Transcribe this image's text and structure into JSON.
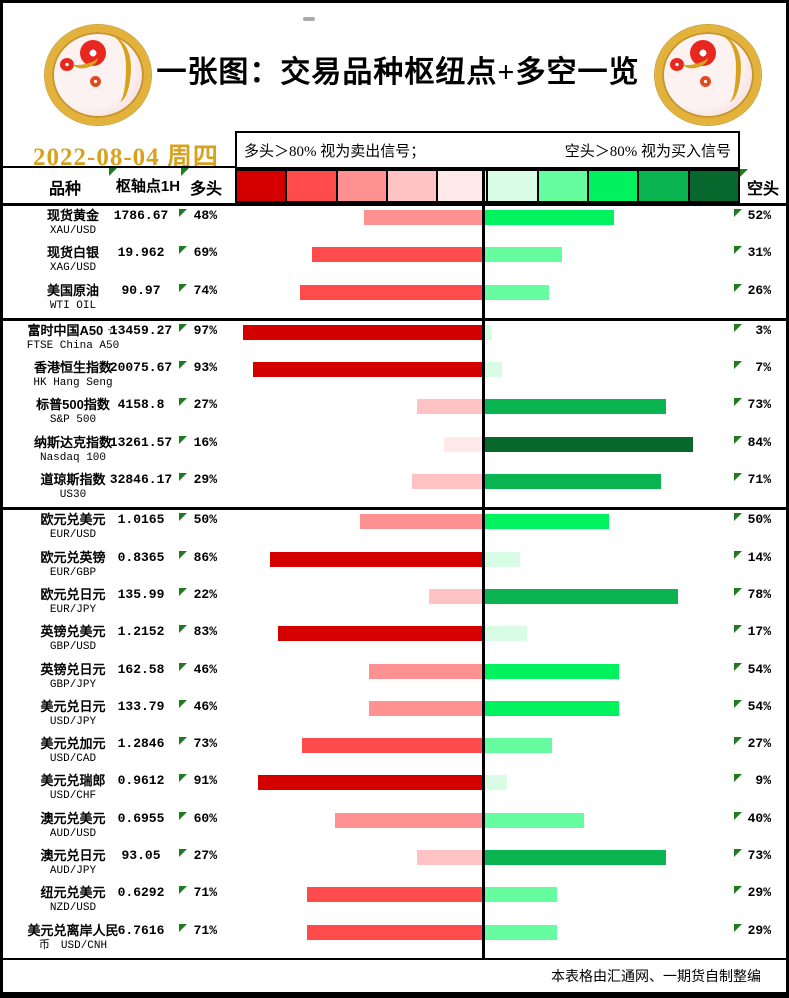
{
  "page": {
    "title": "一张图：交易品种枢纽点+多空一览",
    "date": "2022-08-04 周四",
    "footer": "本表格由汇通网、一期货自制整编"
  },
  "legend": {
    "long_signal": "多头＞80% 视为卖出信号；",
    "short_signal": "空头＞80% 视为买入信号"
  },
  "headers": {
    "instrument": "品种",
    "pivot": "枢轴点1H",
    "long": "多头",
    "short": "空头"
  },
  "colors": {
    "scale": [
      "#D40000",
      "#FF4B4B",
      "#FF9191",
      "#FFC3C3",
      "#FFE9E9",
      "#D9FCE5",
      "#66FDA1",
      "#00F25F",
      "#0AB551",
      "#07672D"
    ],
    "long_buckets_light_to_dark": [
      "#FFE9E9",
      "#FFC3C3",
      "#FF9191",
      "#FF4B4B",
      "#D40000"
    ],
    "short_buckets_light_to_dark": [
      "#D9FCE5",
      "#66FDA1",
      "#00F25F",
      "#0AB551",
      "#07672D"
    ],
    "date_gold": "#D9A21E",
    "marker_green": "#1E7B1E"
  },
  "chart_data": {
    "type": "bar",
    "orientation": "horizontal-diverging",
    "title": "一张图：交易品种枢纽点+多空一览",
    "date": "2022-08-04 周四",
    "legend_position": "top",
    "xlim_pct": [
      -100,
      100
    ],
    "series_names": [
      "多头",
      "空头"
    ],
    "group_breaks_after_row_index": [
      2,
      7
    ],
    "rows": [
      {
        "name_line1": "现货黄金",
        "name_line2": "XAU/USD",
        "name": "现货黄金",
        "code": "XAU/USD",
        "pivot": "1786.67",
        "long_pct": 48,
        "short_pct": 52
      },
      {
        "name_line1": "现货白银",
        "name_line2": "XAG/USD",
        "name": "现货白银",
        "code": "XAG/USD",
        "pivot": "19.962",
        "long_pct": 69,
        "short_pct": 31
      },
      {
        "name_line1": "美国原油",
        "name_line2": "WTI OIL",
        "name": "美国原油",
        "code": "WTI OIL",
        "pivot": "90.97",
        "long_pct": 74,
        "short_pct": 26
      },
      {
        "name_line1": "富时中国A50 ☆",
        "name_line2": "FTSE China A50",
        "name": "富时中国A50",
        "code": "FTSE China A50",
        "pivot": "13459.27",
        "long_pct": 97,
        "short_pct": 3
      },
      {
        "name_line1": "香港恒生指数",
        "name_line2": "HK Hang Seng",
        "name": "香港恒生指数",
        "code": "HK Hang Seng",
        "pivot": "20075.67",
        "long_pct": 93,
        "short_pct": 7
      },
      {
        "name_line1": "标普500指数",
        "name_line2": "S&P 500",
        "name": "标普500指数",
        "code": "S&P 500",
        "pivot": "4158.8",
        "long_pct": 27,
        "short_pct": 73
      },
      {
        "name_line1": "纳斯达克指数",
        "name_line2": "Nasdaq 100",
        "name": "纳斯达克指数",
        "code": "Nasdaq 100",
        "pivot": "13261.57",
        "long_pct": 16,
        "short_pct": 84
      },
      {
        "name_line1": "道琼斯指数",
        "name_line2": "US30",
        "name": "道琼斯指数",
        "code": "US30",
        "pivot": "32846.17",
        "long_pct": 29,
        "short_pct": 71
      },
      {
        "name_line1": "欧元兑美元",
        "name_line2": "EUR/USD",
        "name": "欧元兑美元",
        "code": "EUR/USD",
        "pivot": "1.0165",
        "long_pct": 50,
        "short_pct": 50
      },
      {
        "name_line1": "欧元兑英镑",
        "name_line2": "EUR/GBP",
        "name": "欧元兑英镑",
        "code": "EUR/GBP",
        "pivot": "0.8365",
        "long_pct": 86,
        "short_pct": 14
      },
      {
        "name_line1": "欧元兑日元",
        "name_line2": "EUR/JPY",
        "name": "欧元兑日元",
        "code": "EUR/JPY",
        "pivot": "135.99",
        "long_pct": 22,
        "short_pct": 78
      },
      {
        "name_line1": "英镑兑美元",
        "name_line2": "GBP/USD",
        "name": "英镑兑美元",
        "code": "GBP/USD",
        "pivot": "1.2152",
        "long_pct": 83,
        "short_pct": 17
      },
      {
        "name_line1": "英镑兑日元",
        "name_line2": "GBP/JPY",
        "name": "英镑兑日元",
        "code": "GBP/JPY",
        "pivot": "162.58",
        "long_pct": 46,
        "short_pct": 54
      },
      {
        "name_line1": "美元兑日元",
        "name_line2": "USD/JPY",
        "name": "美元兑日元",
        "code": "USD/JPY",
        "pivot": "133.79",
        "long_pct": 46,
        "short_pct": 54
      },
      {
        "name_line1": "美元兑加元",
        "name_line2": "USD/CAD",
        "name": "美元兑加元",
        "code": "USD/CAD",
        "pivot": "1.2846",
        "long_pct": 73,
        "short_pct": 27
      },
      {
        "name_line1": "美元兑瑞郎",
        "name_line2": "USD/CHF",
        "name": "美元兑瑞郎",
        "code": "USD/CHF",
        "pivot": "0.9612",
        "long_pct": 91,
        "short_pct": 9
      },
      {
        "name_line1": "澳元兑美元",
        "name_line2": "AUD/USD",
        "name": "澳元兑美元",
        "code": "AUD/USD",
        "pivot": "0.6955",
        "long_pct": 60,
        "short_pct": 40
      },
      {
        "name_line1": "澳元兑日元",
        "name_line2": "AUD/JPY",
        "name": "澳元兑日元",
        "code": "AUD/JPY",
        "pivot": "93.05",
        "long_pct": 27,
        "short_pct": 73
      },
      {
        "name_line1": "纽元兑美元",
        "name_line2": "NZD/USD",
        "name": "纽元兑美元",
        "code": "NZD/USD",
        "pivot": "0.6292",
        "long_pct": 71,
        "short_pct": 29
      },
      {
        "name_line1": "美元兑离岸人民",
        "name_line2": "币　USD/CNH",
        "name": "美元兑离岸人民币",
        "code": "USD/CNH",
        "pivot": "6.7616",
        "long_pct": 71,
        "short_pct": 29
      }
    ]
  }
}
